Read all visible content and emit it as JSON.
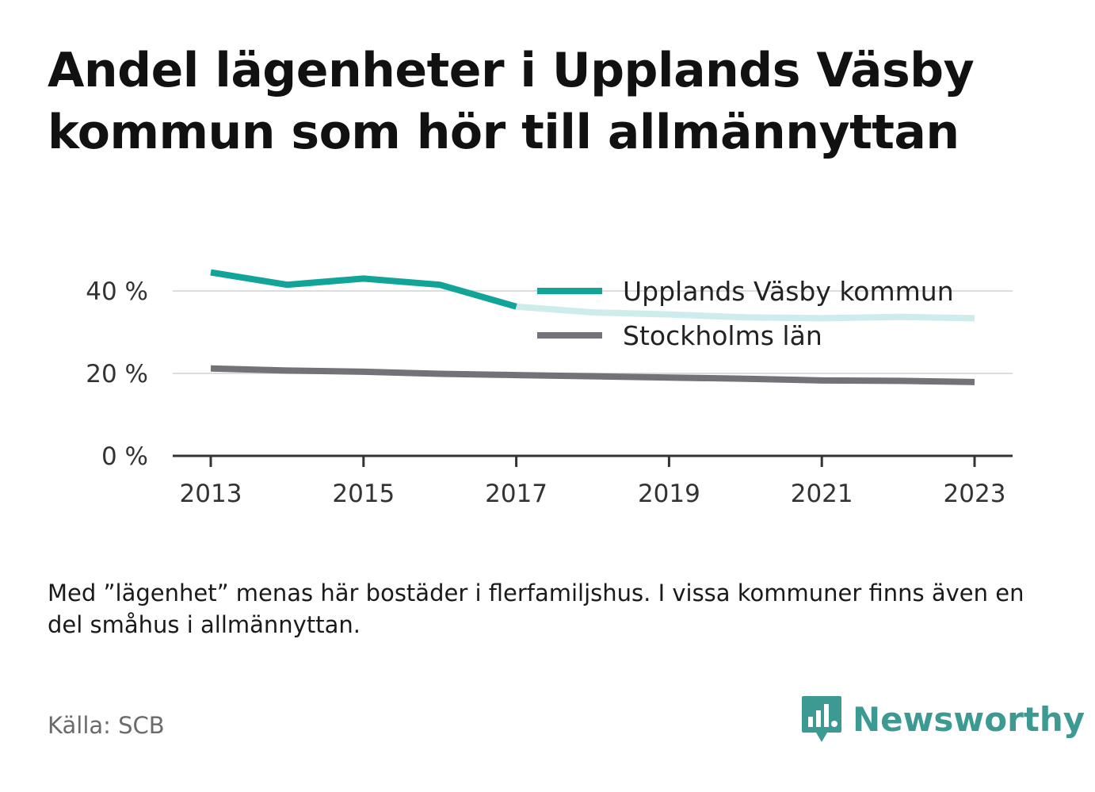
{
  "header": {
    "title": "Andel lägenheter i Upplands Väsby kommun som hör till allmännyttan"
  },
  "chart_data": {
    "type": "line",
    "x": [
      2013,
      2014,
      2015,
      2016,
      2017,
      2018,
      2019,
      2020,
      2021,
      2022,
      2023
    ],
    "xticks": [
      "2013",
      "2015",
      "2017",
      "2019",
      "2021",
      "2023"
    ],
    "yticks": [
      "0 %",
      "20 %",
      "40 %"
    ],
    "ylim": [
      0,
      50
    ],
    "grid": true,
    "legend_position": "top-right",
    "series": [
      {
        "name": "Upplands Väsby kommun",
        "color": "#12a399",
        "faded_color": "#cdeceb",
        "highlight_until": 2017,
        "values": [
          44.5,
          41.5,
          43.0,
          41.5,
          36.2,
          34.8,
          34.3,
          33.6,
          33.4,
          33.7,
          33.4
        ]
      },
      {
        "name": "Stockholms län",
        "color": "#737278",
        "values": [
          21.2,
          20.7,
          20.4,
          19.9,
          19.6,
          19.3,
          19.0,
          18.7,
          18.3,
          18.2,
          17.9
        ]
      }
    ]
  },
  "footer": {
    "note": "Med ”lägenhet” menas här bostäder i flerfamiljshus. I vissa kommuner finns även en del småhus i allmännyttan.",
    "source": "Källa: SCB",
    "brand": "Newsworthy"
  },
  "colors": {
    "grid": "#dddddd",
    "axis": "#333333",
    "brand": "#3c9a92"
  },
  "icons": {
    "brand_logo": "bar-chart-speech-bubble-icon"
  }
}
